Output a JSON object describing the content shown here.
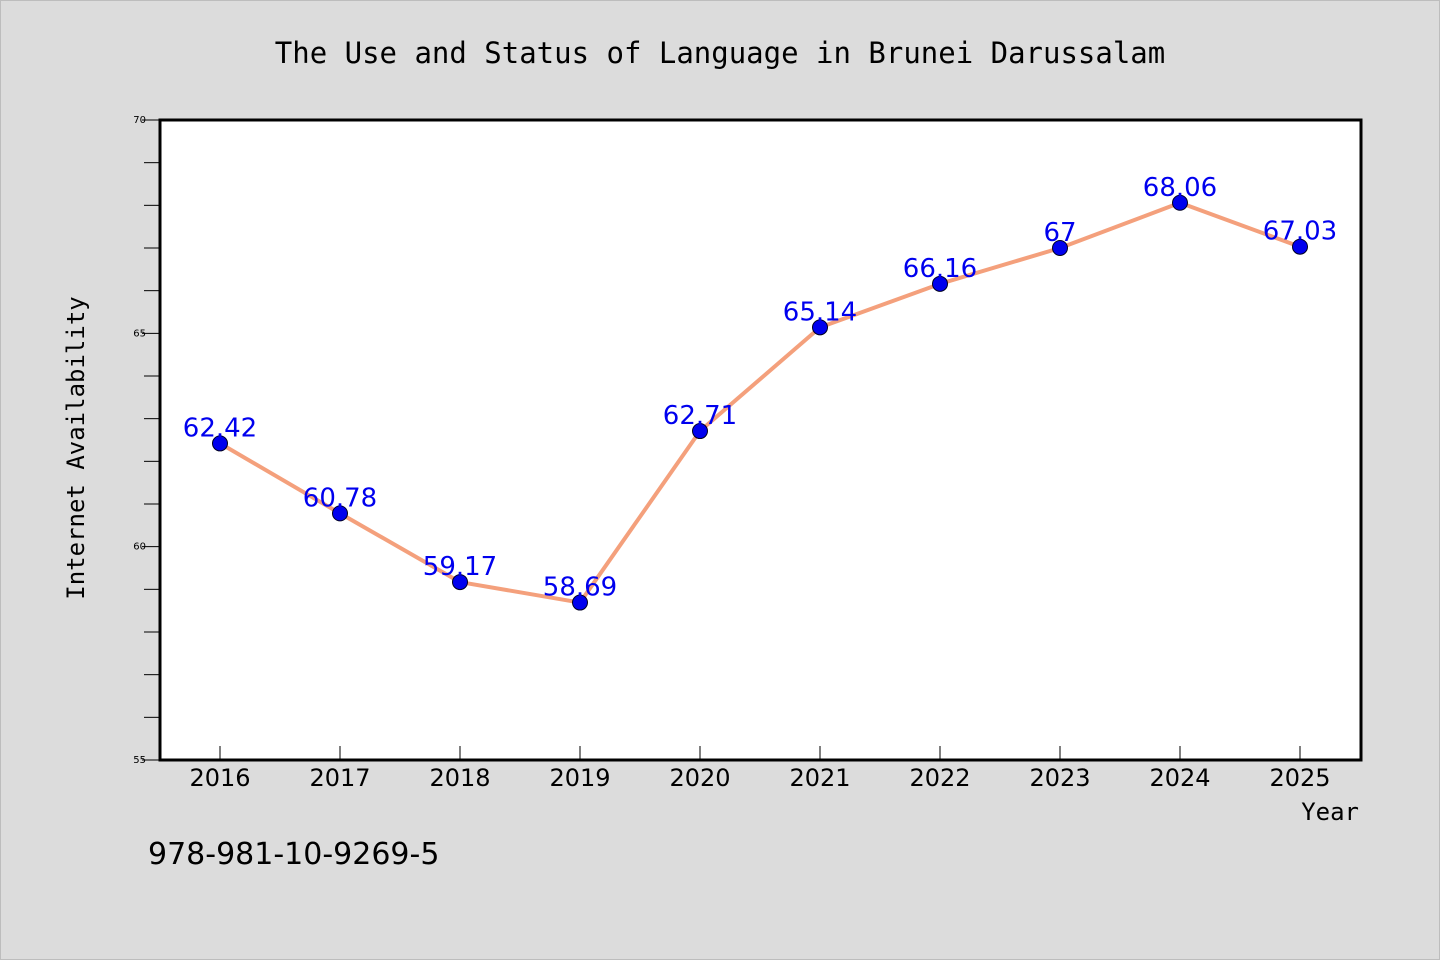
{
  "chart_data": {
    "type": "line",
    "title": "The Use and Status of Language in Brunei Darussalam",
    "xlabel": "Year",
    "ylabel": "Internet Availability",
    "x": [
      "2016",
      "2017",
      "2018",
      "2019",
      "2020",
      "2021",
      "2022",
      "2023",
      "2024",
      "2025"
    ],
    "series": [
      {
        "values": [
          62.42,
          60.78,
          59.17,
          58.69,
          62.71,
          65.14,
          66.16,
          67,
          68.06,
          67.03
        ]
      }
    ],
    "data_labels": [
      "62.42",
      "60.78",
      "59.17",
      "58.69",
      "62.71",
      "65.14",
      "66.16",
      "67",
      "68.06",
      "67.03"
    ],
    "ylim": [
      55,
      70
    ],
    "yticks": [
      "55",
      "60",
      "65",
      "70"
    ],
    "grid": false,
    "colors": {
      "line": "#f4a07c",
      "marker": "#0000ee",
      "data_label": "#0000ee",
      "background": "#dcdcdc",
      "plot_area": "#ffffff"
    }
  },
  "footer": {
    "isbn": "978-981-10-9269-5"
  }
}
